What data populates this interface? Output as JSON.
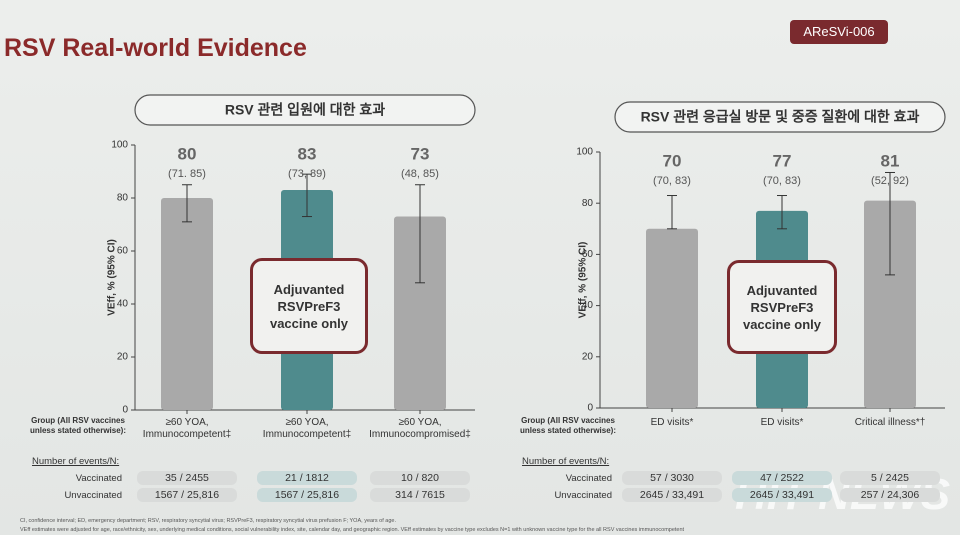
{
  "title": "RSV Real-world Evidence",
  "badge": "AReSVi-006",
  "events_title": "Number of events/N:",
  "row_labels": [
    "Vaccinated",
    "Unvaccinated"
  ],
  "footnotes": [
    "CI, confidence interval; ED, emergency department; RSV, respiratory syncytial virus; RSVPreF3, respiratory syncytial virus prefusion F; YOA, years of age.",
    "VEff estimates were adjusted for age, race/ethnicity, sex, underlying medical conditions, social vulnerability index, site, calendar day, and geographic region. VEff estimates by vaccine type excludes N=1 with unknown vaccine type for the all RSV vaccines immunocompetent"
  ],
  "watermark": "HIT NEWS",
  "chart_data": [
    {
      "type": "bar",
      "title": "RSV 관련 입원에 대한 효과",
      "y_label": "VEff, % (95% CI)",
      "group_label": "Group (All RSV vaccines\nunless stated otherwise):",
      "categories": [
        "≥60 YOA,\nImmunocompetent‡",
        "≥60 YOA,\nImmunocompetent‡",
        "≥60 YOA,\nImmunocompromised‡"
      ],
      "values": [
        80,
        83,
        73
      ],
      "ci_low": [
        71,
        73,
        48
      ],
      "ci_high": [
        85,
        89,
        85
      ],
      "ci_labels": [
        "(71. 85)",
        "(73, 89)",
        "(48, 85)"
      ],
      "colors": [
        "#a9a9a9",
        "#4f8b8d",
        "#a9a9a9"
      ],
      "ylim": [
        0,
        100
      ],
      "yticks": [
        0,
        20,
        40,
        60,
        80,
        100
      ],
      "annotation": "Adjuvanted\nRSVPreF3\nvaccine only",
      "vaccinated": [
        "35 / 2455",
        "21 / 1812",
        "10 / 820"
      ],
      "unvaccinated": [
        "1567 / 25,816",
        "1567 / 25,816",
        "314 / 7615"
      ]
    },
    {
      "type": "bar",
      "title": "RSV 관련 응급실 방문 및 중증 질환에 대한 효과",
      "y_label": "VEff, % (95% CI)",
      "group_label": "Group (All RSV vaccines\nunless stated otherwise):",
      "categories": [
        "ED visits*",
        "ED visits*",
        "Critical illness*†"
      ],
      "values": [
        70,
        77,
        81
      ],
      "ci_low": [
        70,
        70,
        52
      ],
      "ci_high": [
        83,
        83,
        92
      ],
      "ci_labels": [
        "(70, 83)",
        "(70, 83)",
        "(52, 92)"
      ],
      "colors": [
        "#a9a9a9",
        "#4f8b8d",
        "#a9a9a9"
      ],
      "ylim": [
        0,
        100
      ],
      "yticks": [
        0,
        20,
        40,
        60,
        80,
        100
      ],
      "annotation": "Adjuvanted\nRSVPreF3\nvaccine only",
      "vaccinated": [
        "57 / 3030",
        "47 / 2522",
        "5 / 2425"
      ],
      "unvaccinated": [
        "2645 / 33,491",
        "2645 / 33,491",
        "257 / 24,306"
      ]
    }
  ]
}
